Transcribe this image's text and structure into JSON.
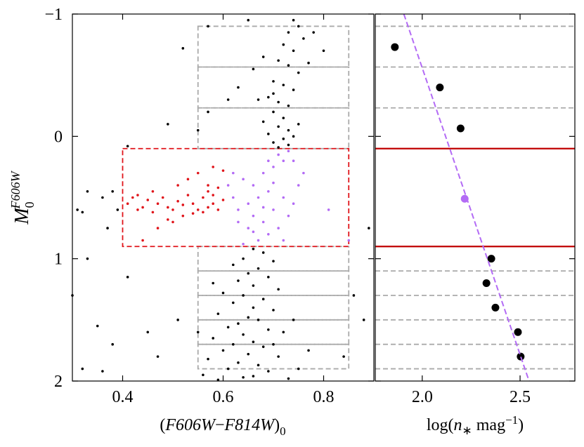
{
  "chart_data": [
    {
      "type": "scatter",
      "xlabel": {
        "open": "(",
        "a": "F606W",
        "op": "−",
        "b": "F814W",
        "close": ")",
        "sub": "0"
      },
      "ylabel": {
        "main": "M",
        "sub": "0",
        "sup": "F606W"
      },
      "xlim": [
        0.3,
        0.9
      ],
      "ylim": [
        2,
        -1
      ],
      "xticks": [
        0.4,
        0.6,
        0.8
      ],
      "yticks": [
        {
          "value": -1,
          "label": "−1"
        },
        0,
        1,
        2
      ],
      "boxes": [
        {
          "x": [
            0.55,
            0.85
          ],
          "y": [
            -0.9,
            -0.567
          ],
          "color": "#aaaaaa"
        },
        {
          "x": [
            0.55,
            0.85
          ],
          "y": [
            -0.567,
            -0.233
          ],
          "color": "#aaaaaa"
        },
        {
          "x": [
            0.55,
            0.85
          ],
          "y": [
            -0.233,
            0.1
          ],
          "color": "#aaaaaa"
        },
        {
          "x": [
            0.55,
            0.85
          ],
          "y": [
            0.9,
            1.1
          ],
          "color": "#aaaaaa"
        },
        {
          "x": [
            0.55,
            0.85
          ],
          "y": [
            1.1,
            1.3
          ],
          "color": "#aaaaaa"
        },
        {
          "x": [
            0.55,
            0.85
          ],
          "y": [
            1.3,
            1.5
          ],
          "color": "#aaaaaa"
        },
        {
          "x": [
            0.55,
            0.85
          ],
          "y": [
            1.5,
            1.7
          ],
          "color": "#aaaaaa"
        },
        {
          "x": [
            0.55,
            0.85
          ],
          "y": [
            1.7,
            1.9
          ],
          "color": "#aaaaaa"
        },
        {
          "x": [
            0.4,
            0.85
          ],
          "y": [
            0.1,
            0.9
          ],
          "color": "#e0141a"
        }
      ],
      "series": [
        {
          "color": "#000000",
          "size": 1.8,
          "points": [
            [
              0.74,
              -0.95
            ],
            [
              0.75,
              -0.9
            ],
            [
              0.73,
              -0.85
            ],
            [
              0.76,
              -0.8
            ],
            [
              0.72,
              -0.75
            ],
            [
              0.74,
              -0.7
            ],
            [
              0.71,
              -0.62
            ],
            [
              0.73,
              -0.58
            ],
            [
              0.75,
              -0.52
            ],
            [
              0.7,
              -0.45
            ],
            [
              0.72,
              -0.42
            ],
            [
              0.74,
              -0.38
            ],
            [
              0.69,
              -0.32
            ],
            [
              0.71,
              -0.28
            ],
            [
              0.73,
              -0.25
            ],
            [
              0.7,
              -0.2
            ],
            [
              0.72,
              -0.15
            ],
            [
              0.68,
              -0.12
            ],
            [
              0.71,
              -0.08
            ],
            [
              0.73,
              -0.05
            ],
            [
              0.69,
              -0.02
            ],
            [
              0.72,
              0.02
            ],
            [
              0.7,
              0.05
            ],
            [
              0.73,
              0.07
            ],
            [
              0.71,
              0.09
            ],
            [
              0.67,
              -0.3
            ],
            [
              0.66,
              -0.55
            ],
            [
              0.78,
              -0.85
            ],
            [
              0.8,
              -0.7
            ],
            [
              0.63,
              -0.4
            ],
            [
              0.75,
              -0.1
            ],
            [
              0.77,
              -0.6
            ],
            [
              0.68,
              -0.65
            ],
            [
              0.74,
              0.0
            ],
            [
              0.7,
              -0.35
            ],
            [
              0.52,
              -0.72
            ],
            [
              0.57,
              -0.9
            ],
            [
              0.65,
              -0.95
            ],
            [
              0.61,
              -0.3
            ],
            [
              0.55,
              -0.05
            ],
            [
              0.41,
              0.08
            ],
            [
              0.33,
              0.45
            ],
            [
              0.36,
              0.5
            ],
            [
              0.38,
              0.45
            ],
            [
              0.39,
              0.6
            ],
            [
              0.31,
              0.6
            ],
            [
              0.32,
              0.62
            ],
            [
              0.37,
              0.75
            ],
            [
              0.33,
              1.0
            ],
            [
              0.41,
              1.15
            ],
            [
              0.3,
              1.3
            ],
            [
              0.35,
              1.55
            ],
            [
              0.38,
              1.7
            ],
            [
              0.32,
              1.9
            ],
            [
              0.36,
              1.92
            ],
            [
              0.45,
              1.6
            ],
            [
              0.51,
              1.5
            ],
            [
              0.47,
              1.8
            ],
            [
              0.86,
              1.3
            ],
            [
              0.88,
              1.5
            ],
            [
              0.84,
              1.8
            ],
            [
              0.89,
              0.75
            ],
            [
              0.49,
              -0.1
            ],
            [
              0.57,
              -0.2
            ],
            [
              0.66,
              0.92
            ],
            [
              0.68,
              0.95
            ],
            [
              0.64,
              1.0
            ],
            [
              0.7,
              1.02
            ],
            [
              0.62,
              1.05
            ],
            [
              0.67,
              1.08
            ],
            [
              0.65,
              1.12
            ],
            [
              0.69,
              1.15
            ],
            [
              0.63,
              1.18
            ],
            [
              0.66,
              1.22
            ],
            [
              0.71,
              1.25
            ],
            [
              0.6,
              1.28
            ],
            [
              0.64,
              1.3
            ],
            [
              0.68,
              1.33
            ],
            [
              0.62,
              1.36
            ],
            [
              0.66,
              1.4
            ],
            [
              0.7,
              1.42
            ],
            [
              0.59,
              1.45
            ],
            [
              0.65,
              1.48
            ],
            [
              0.67,
              1.5
            ],
            [
              0.63,
              1.53
            ],
            [
              0.61,
              1.56
            ],
            [
              0.69,
              1.58
            ],
            [
              0.72,
              1.6
            ],
            [
              0.64,
              1.62
            ],
            [
              0.58,
              1.65
            ],
            [
              0.66,
              1.68
            ],
            [
              0.62,
              1.7
            ],
            [
              0.68,
              1.72
            ],
            [
              0.6,
              1.75
            ],
            [
              0.65,
              1.78
            ],
            [
              0.71,
              1.8
            ],
            [
              0.57,
              1.82
            ],
            [
              0.63,
              1.85
            ],
            [
              0.67,
              1.87
            ],
            [
              0.61,
              1.9
            ],
            [
              0.69,
              1.92
            ],
            [
              0.56,
              1.95
            ],
            [
              0.64,
              1.97
            ],
            [
              0.73,
              1.98
            ],
            [
              0.59,
              1.99
            ],
            [
              0.66,
              1.96
            ],
            [
              0.7,
              1.7
            ],
            [
              0.74,
              1.5
            ],
            [
              0.58,
              1.2
            ],
            [
              0.75,
              1.9
            ],
            [
              0.55,
              1.6
            ],
            [
              0.77,
              1.75
            ]
          ]
        },
        {
          "color": "#e0141a",
          "size": 1.8,
          "points": [
            [
              0.41,
              0.55
            ],
            [
              0.42,
              0.5
            ],
            [
              0.43,
              0.6
            ],
            [
              0.44,
              0.58
            ],
            [
              0.45,
              0.52
            ],
            [
              0.46,
              0.62
            ],
            [
              0.47,
              0.55
            ],
            [
              0.48,
              0.5
            ],
            [
              0.49,
              0.58
            ],
            [
              0.5,
              0.6
            ],
            [
              0.51,
              0.53
            ],
            [
              0.52,
              0.56
            ],
            [
              0.53,
              0.48
            ],
            [
              0.54,
              0.55
            ],
            [
              0.55,
              0.6
            ],
            [
              0.56,
              0.5
            ],
            [
              0.57,
              0.45
            ],
            [
              0.58,
              0.55
            ],
            [
              0.59,
              0.6
            ],
            [
              0.6,
              0.52
            ],
            [
              0.53,
              0.35
            ],
            [
              0.55,
              0.3
            ],
            [
              0.57,
              0.4
            ],
            [
              0.5,
              0.7
            ],
            [
              0.47,
              0.75
            ],
            [
              0.44,
              0.85
            ],
            [
              0.52,
              0.65
            ],
            [
              0.56,
              0.62
            ],
            [
              0.58,
              0.48
            ],
            [
              0.59,
              0.42
            ],
            [
              0.46,
              0.45
            ],
            [
              0.49,
              0.68
            ],
            [
              0.54,
              0.63
            ],
            [
              0.57,
              0.58
            ],
            [
              0.43,
              0.48
            ],
            [
              0.6,
              0.28
            ],
            [
              0.58,
              0.25
            ],
            [
              0.51,
              0.4
            ]
          ]
        },
        {
          "color": "#b36bf5",
          "size": 1.8,
          "points": [
            [
              0.62,
              0.3
            ],
            [
              0.64,
              0.35
            ],
            [
              0.66,
              0.4
            ],
            [
              0.68,
              0.3
            ],
            [
              0.7,
              0.25
            ],
            [
              0.72,
              0.2
            ],
            [
              0.71,
              0.15
            ],
            [
              0.73,
              0.12
            ],
            [
              0.69,
              0.45
            ],
            [
              0.67,
              0.5
            ],
            [
              0.65,
              0.55
            ],
            [
              0.63,
              0.6
            ],
            [
              0.66,
              0.65
            ],
            [
              0.68,
              0.7
            ],
            [
              0.7,
              0.6
            ],
            [
              0.72,
              0.5
            ],
            [
              0.74,
              0.55
            ],
            [
              0.71,
              0.75
            ],
            [
              0.69,
              0.8
            ],
            [
              0.67,
              0.85
            ],
            [
              0.65,
              0.75
            ],
            [
              0.64,
              0.88
            ],
            [
              0.62,
              0.5
            ],
            [
              0.61,
              0.4
            ],
            [
              0.73,
              0.65
            ],
            [
              0.75,
              0.4
            ],
            [
              0.76,
              0.3
            ],
            [
              0.7,
              0.38
            ],
            [
              0.68,
              0.58
            ],
            [
              0.66,
              0.78
            ],
            [
              0.81,
              0.6
            ],
            [
              0.85,
              0.85
            ],
            [
              0.72,
              0.85
            ],
            [
              0.63,
              0.7
            ],
            [
              0.74,
              0.2
            ],
            [
              0.69,
              0.2
            ]
          ]
        }
      ]
    },
    {
      "type": "scatter",
      "xlabel": {
        "pre": "log(",
        "var": "n",
        "sub": "∗",
        "mid": " mag",
        "sup": "−1",
        "post": ")"
      },
      "xlim": [
        1.76,
        2.78
      ],
      "ylim": [
        2,
        -1
      ],
      "xticks": [
        {
          "value": 2,
          "label": "2.0"
        },
        2.5
      ],
      "yticks": [
        -1,
        0,
        1,
        2
      ],
      "hlines": [
        {
          "y": -0.9,
          "color": "#aaaaaa",
          "style": "dashed"
        },
        {
          "y": -0.567,
          "color": "#aaaaaa",
          "style": "dashed"
        },
        {
          "y": -0.233,
          "color": "#aaaaaa",
          "style": "dashed"
        },
        {
          "y": 0.1,
          "color": "#c00000",
          "style": "solid"
        },
        {
          "y": 0.9,
          "color": "#c00000",
          "style": "solid"
        },
        {
          "y": 1.1,
          "color": "#aaaaaa",
          "style": "dashed"
        },
        {
          "y": 1.3,
          "color": "#aaaaaa",
          "style": "dashed"
        },
        {
          "y": 1.5,
          "color": "#aaaaaa",
          "style": "dashed"
        },
        {
          "y": 1.7,
          "color": "#aaaaaa",
          "style": "dashed"
        },
        {
          "y": 1.9,
          "color": "#aaaaaa",
          "style": "dashed"
        }
      ],
      "fit_line": {
        "x": [
          1.906,
          2.546
        ],
        "y": [
          -1,
          2
        ],
        "color": "#b36bf5"
      },
      "series": [
        {
          "color": "#000000",
          "size": 5.5,
          "points": [
            [
              1.86,
              -0.73
            ],
            [
              2.09,
              -0.4
            ],
            [
              2.196,
              -0.065
            ],
            [
              2.353,
              1.0
            ],
            [
              2.328,
              1.2
            ],
            [
              2.374,
              1.4
            ],
            [
              2.489,
              1.6
            ],
            [
              2.503,
              1.8
            ]
          ]
        },
        {
          "color": "#b36bf5",
          "size": 5.5,
          "points": [
            [
              2.217,
              0.51
            ]
          ]
        }
      ]
    }
  ]
}
